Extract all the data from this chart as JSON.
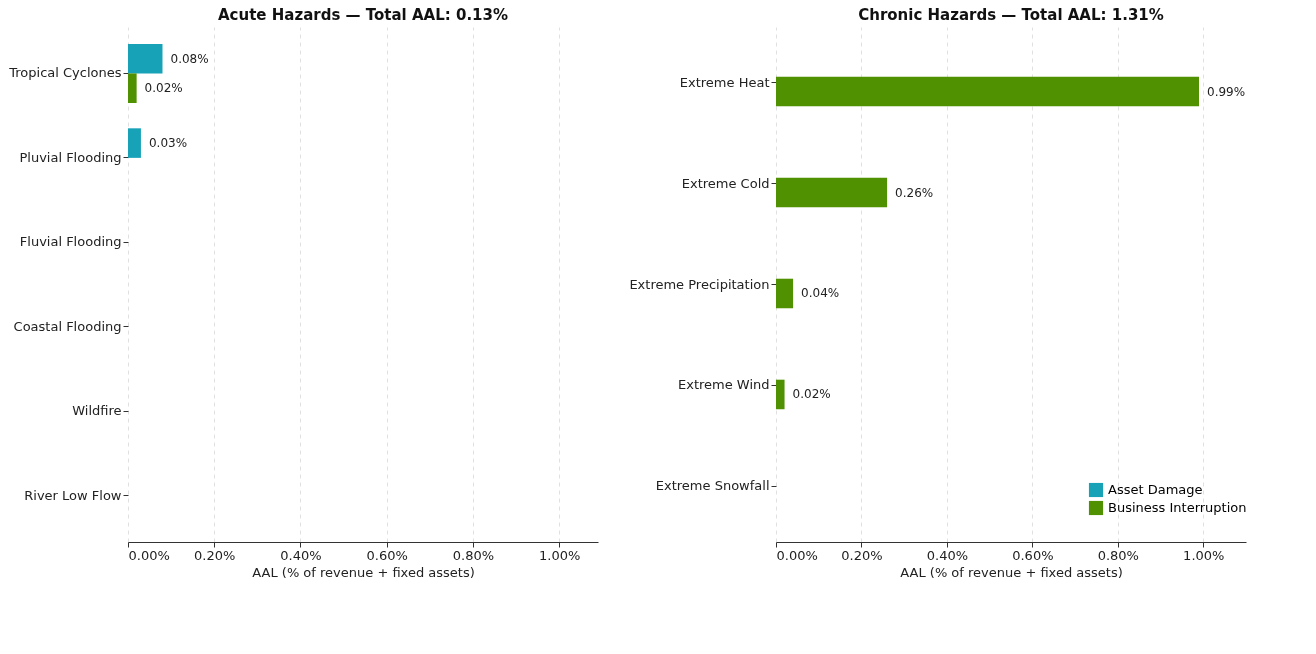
{
  "chart_data": [
    {
      "type": "bar",
      "orientation": "horizontal",
      "title": "Acute Hazards — Total AAL: 0.13%",
      "xlabel": "AAL (% of revenue + fixed assets)",
      "categories": [
        "Tropical Cyclones",
        "Pluvial Flooding",
        "Fluvial Flooding",
        "Coastal Flooding",
        "Wildfire",
        "River Low Flow"
      ],
      "series": [
        {
          "name": "Asset Damage",
          "color": "#17a2b8",
          "values": [
            0.08,
            0.03,
            0,
            0,
            0,
            0
          ],
          "value_labels": [
            "0.08%",
            "0.03%",
            null,
            null,
            null,
            null
          ]
        },
        {
          "name": "Business Interruption",
          "color": "#4f9100",
          "values": [
            0.02,
            0,
            0,
            0,
            0,
            0
          ],
          "value_labels": [
            "0.02%",
            null,
            null,
            null,
            null,
            null
          ]
        }
      ],
      "xlim": [
        0,
        1.09
      ],
      "xticks": [
        {
          "value": 0,
          "label": "0.00%"
        },
        {
          "value": 0.2,
          "label": "0.20%"
        },
        {
          "value": 0.4,
          "label": "0.40%"
        },
        {
          "value": 0.6,
          "label": "0.60%"
        },
        {
          "value": 0.8,
          "label": "0.80%"
        },
        {
          "value": 1.0,
          "label": "1.00%"
        }
      ],
      "grid": "x",
      "legend": "bottom right"
    },
    {
      "type": "bar",
      "orientation": "horizontal",
      "title": "Chronic Hazards — Total AAL: 1.31%",
      "xlabel": "AAL (% of revenue + fixed assets)",
      "categories": [
        "Extreme Heat",
        "Extreme Cold",
        "Extreme Precipitation",
        "Extreme Wind",
        "Extreme Snowfall"
      ],
      "series": [
        {
          "name": "Asset Damage",
          "color": "#17a2b8",
          "values": [
            0,
            0,
            0,
            0,
            0
          ],
          "value_labels": [
            null,
            null,
            null,
            null,
            null
          ]
        },
        {
          "name": "Business Interruption",
          "color": "#4f9100",
          "values": [
            0.99,
            0.26,
            0.04,
            0.02,
            0
          ],
          "value_labels": [
            "0.99%",
            "0.26%",
            "0.04%",
            "0.02%",
            null
          ]
        }
      ],
      "xlim": [
        0,
        1.1
      ],
      "xticks": [
        {
          "value": 0,
          "label": "0.00%"
        },
        {
          "value": 0.2,
          "label": "0.20%"
        },
        {
          "value": 0.4,
          "label": "0.40%"
        },
        {
          "value": 0.6,
          "label": "0.60%"
        },
        {
          "value": 0.8,
          "label": "0.80%"
        },
        {
          "value": 1.0,
          "label": "1.00%"
        }
      ],
      "grid": "x",
      "legend": "bottom right"
    }
  ]
}
